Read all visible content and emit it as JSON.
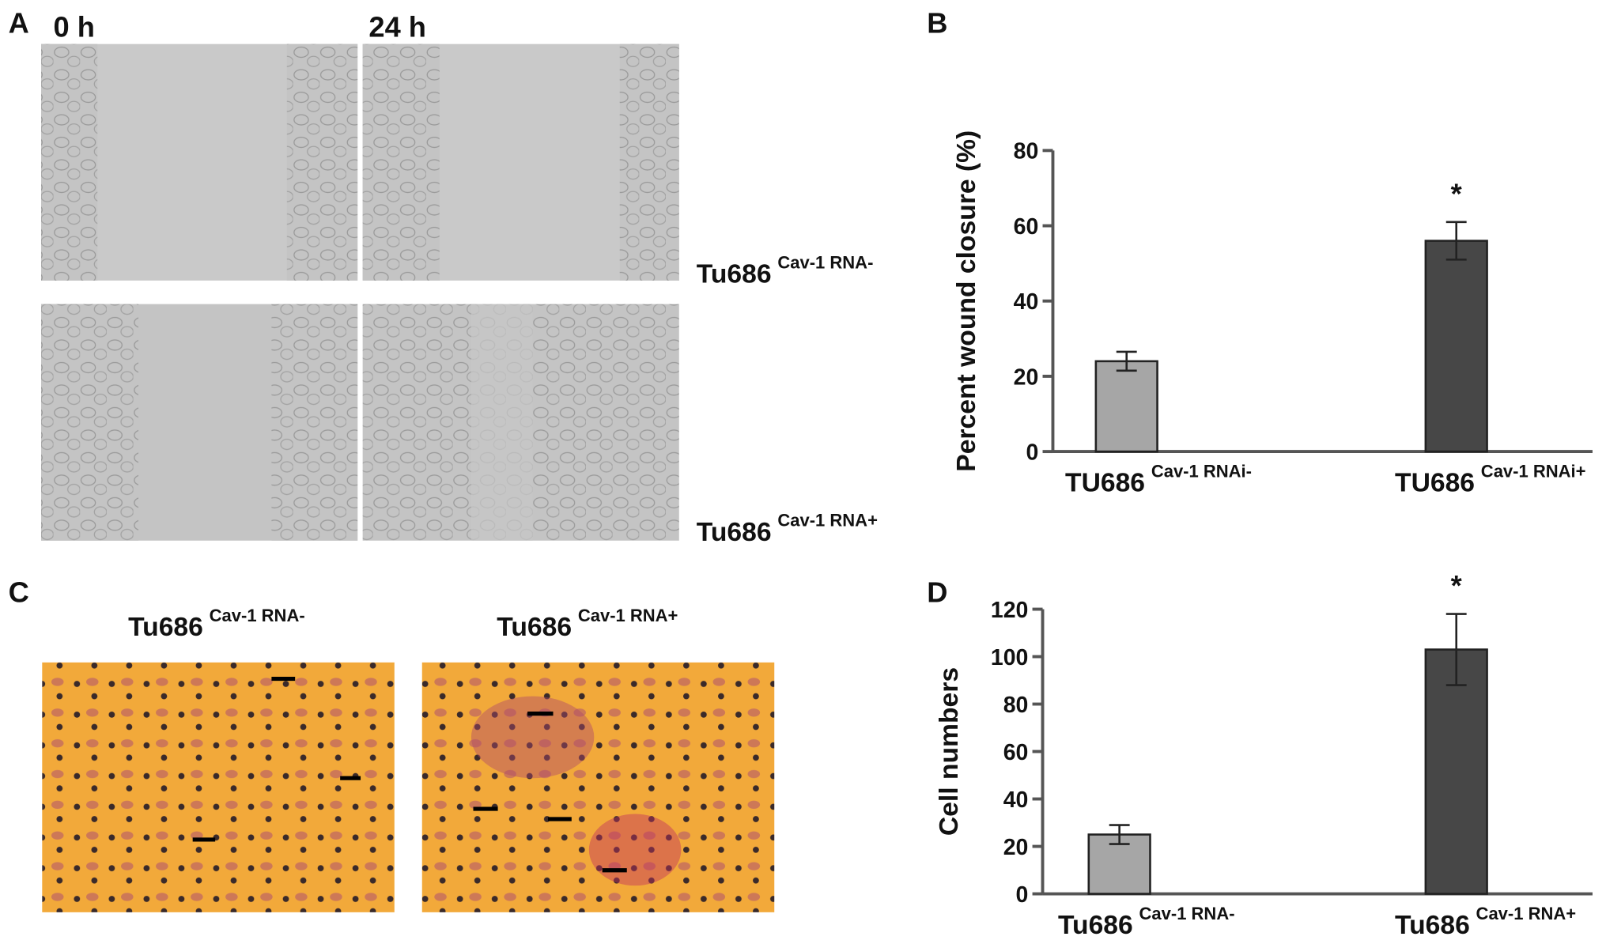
{
  "panel_a": {
    "letter": "A",
    "times": [
      "0 h",
      "24 h"
    ],
    "rows": [
      {
        "name": "Tu686",
        "sup": "Cav-1 RNA-"
      },
      {
        "name": "Tu686",
        "sup": "Cav-1 RNA+"
      }
    ]
  },
  "panel_c": {
    "letter": "C",
    "images": [
      {
        "name": "Tu686",
        "sup": "Cav-1 RNA-"
      },
      {
        "name": "Tu686",
        "sup": "Cav-1 RNA+"
      }
    ]
  },
  "chart_data": [
    {
      "type": "bar",
      "letter": "B",
      "ylabel": "Percent wound closure (%)",
      "categories": [
        "TU686",
        "TU686"
      ],
      "category_superscripts": [
        "Cav-1 RNAi-",
        "Cav-1 RNAi+"
      ],
      "values": [
        24,
        56
      ],
      "errors": [
        2.5,
        5
      ],
      "value_annotations": [
        null,
        "*"
      ],
      "colors": [
        "#a6a6a6",
        "#474747"
      ],
      "ylim": [
        0,
        80
      ],
      "yticks": [
        0,
        20,
        40,
        60,
        80
      ]
    },
    {
      "type": "bar",
      "letter": "D",
      "ylabel": "Cell numbers",
      "categories": [
        "Tu686",
        "Tu686"
      ],
      "category_superscripts": [
        "Cav-1 RNA-",
        "Cav-1 RNA+"
      ],
      "values": [
        25,
        103
      ],
      "errors": [
        4,
        15
      ],
      "value_annotations": [
        null,
        "*"
      ],
      "colors": [
        "#a6a6a6",
        "#474747"
      ],
      "ylim": [
        0,
        120
      ],
      "yticks": [
        0,
        20,
        40,
        60,
        80,
        100,
        120
      ]
    }
  ]
}
